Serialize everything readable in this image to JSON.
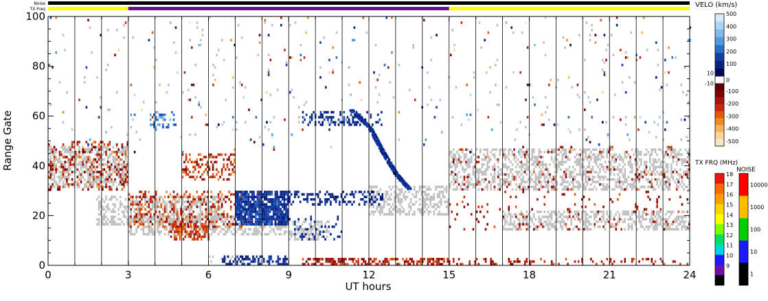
{
  "chart_data": {
    "type": "heatmap",
    "xlabel": "UT hours",
    "ylabel": "Range Gate",
    "x_range": [
      0,
      24
    ],
    "y_range": [
      0,
      100
    ],
    "x_ticks": [
      0,
      3,
      6,
      9,
      12,
      15,
      18,
      21,
      24
    ],
    "y_ticks": [
      0,
      20,
      40,
      60,
      80,
      100
    ],
    "scan_boundaries_hours": [
      1,
      2,
      3,
      4,
      5,
      6,
      7,
      8,
      9,
      10,
      11,
      12,
      13,
      14,
      15,
      16,
      17,
      18,
      19,
      20,
      21,
      22,
      23
    ],
    "top_bars": [
      {
        "label": "Noise",
        "segments": [
          {
            "start": 0,
            "end": 24,
            "color": "#000000"
          }
        ]
      },
      {
        "label": "TX Freq",
        "segments": [
          {
            "start": 0,
            "end": 3,
            "color": "#ffff00"
          },
          {
            "start": 3,
            "end": 15,
            "color": "#6a0d91"
          },
          {
            "start": 15,
            "end": 24,
            "color": "#ffff00"
          }
        ]
      }
    ],
    "ground_scatter_color": "#c0c0c0",
    "regions": [
      {
        "kind": "gs",
        "x0": 0.0,
        "x1": 3.0,
        "y0": 31,
        "y1": 48,
        "density": 0.55
      },
      {
        "kind": "gs",
        "x0": 1.8,
        "x1": 3.0,
        "y0": 16,
        "y1": 28,
        "density": 0.45
      },
      {
        "kind": "gs",
        "x0": 3.0,
        "x1": 6.5,
        "y0": 17,
        "y1": 28,
        "density": 0.5
      },
      {
        "kind": "gs",
        "x0": 3.0,
        "x1": 9.0,
        "y0": 12,
        "y1": 20,
        "density": 0.5
      },
      {
        "kind": "gs",
        "x0": 9.0,
        "x1": 10.5,
        "y0": 10,
        "y1": 18,
        "density": 0.55
      },
      {
        "kind": "gs",
        "x0": 12.0,
        "x1": 15.0,
        "y0": 20,
        "y1": 32,
        "density": 0.5
      },
      {
        "kind": "gs",
        "x0": 15.0,
        "x1": 24.0,
        "y0": 30,
        "y1": 47,
        "density": 0.45
      },
      {
        "kind": "gs",
        "x0": 17.0,
        "x1": 24.0,
        "y0": 14,
        "y1": 22,
        "density": 0.45
      },
      {
        "kind": "gs",
        "x0": 6.0,
        "x1": 8.0,
        "y0": 1,
        "y1": 4,
        "density": 0.25
      },
      {
        "kind": "gs",
        "x0": 0.0,
        "x1": 24.0,
        "y0": 50,
        "y1": 98,
        "density": 0.012
      },
      {
        "kind": "vel",
        "x0": 0.0,
        "x1": 3.0,
        "y0": 30,
        "y1": 50,
        "density": 0.22,
        "vmin": -300,
        "vmax": -50
      },
      {
        "kind": "vel",
        "x0": 3.0,
        "x1": 8.0,
        "y0": 15,
        "y1": 30,
        "density": 0.28,
        "vmin": -300,
        "vmax": -80
      },
      {
        "kind": "vel",
        "x0": 4.5,
        "x1": 6.0,
        "y0": 10,
        "y1": 17,
        "density": 0.55,
        "vmin": -300,
        "vmax": -120
      },
      {
        "kind": "vel",
        "x0": 5.0,
        "x1": 7.0,
        "y0": 34,
        "y1": 45,
        "density": 0.3,
        "vmin": -300,
        "vmax": -80
      },
      {
        "kind": "vel",
        "x0": 7.0,
        "x1": 9.0,
        "y0": 16,
        "y1": 30,
        "density": 0.85,
        "vmin": 80,
        "vmax": 200
      },
      {
        "kind": "vel",
        "x0": 9.0,
        "x1": 12.5,
        "y0": 24,
        "y1": 30,
        "density": 0.35,
        "vmin": 60,
        "vmax": 140
      },
      {
        "kind": "vel",
        "x0": 9.5,
        "x1": 12.5,
        "y0": 56,
        "y1": 62,
        "density": 0.35,
        "vmin": 60,
        "vmax": 150
      },
      {
        "kind": "vel",
        "x0": 9.0,
        "x1": 11.0,
        "y0": 10,
        "y1": 20,
        "density": 0.2,
        "vmin": 60,
        "vmax": 150
      },
      {
        "kind": "vel",
        "x0": 6.5,
        "x1": 9.0,
        "y0": 0,
        "y1": 4,
        "density": 0.5,
        "vmin": 60,
        "vmax": 180
      },
      {
        "kind": "vel",
        "x0": 9.5,
        "x1": 15.0,
        "y0": 0,
        "y1": 3,
        "density": 0.55,
        "vmin": -250,
        "vmax": -80
      },
      {
        "kind": "vel",
        "x0": 15.0,
        "x1": 24.0,
        "y0": 0,
        "y1": 3,
        "density": 0.18,
        "vmin": -250,
        "vmax": -60
      },
      {
        "kind": "vel",
        "x0": 15.0,
        "x1": 24.0,
        "y0": 14,
        "y1": 48,
        "density": 0.05,
        "vmin": -250,
        "vmax": -60
      },
      {
        "kind": "vel",
        "x0": 3.8,
        "x1": 4.8,
        "y0": 55,
        "y1": 62,
        "density": 0.3,
        "vmin": 150,
        "vmax": 350
      },
      {
        "kind": "vel",
        "x0": 0.0,
        "x1": 24.0,
        "y0": 45,
        "y1": 100,
        "density": 0.012,
        "vmin": -450,
        "vmax": 450
      }
    ],
    "diagonal_band": {
      "points": [
        [
          11.3,
          62
        ],
        [
          12.0,
          55
        ],
        [
          12.5,
          45
        ],
        [
          13.0,
          36
        ],
        [
          13.5,
          30
        ]
      ],
      "kind": "vel",
      "vmin": 60,
      "vmax": 160
    },
    "velocity_colorbar": {
      "title": "VELO (km/s)",
      "tick_labels": [
        "500",
        "400",
        "300",
        "200",
        "100",
        "10",
        "0",
        "-10",
        "-100",
        "-200",
        "-300",
        "-400",
        "-500"
      ],
      "colors_top_to_bottom": [
        "#d7ecfa",
        "#aed6f4",
        "#7fbbea",
        "#4f9bdc",
        "#2a6fc8",
        "#143fa6",
        "#082283",
        "#000a55",
        "#ffffff",
        "#5b0000",
        "#800000",
        "#a31515",
        "#c22a0a",
        "#de5a10",
        "#f08c20",
        "#f7b45a",
        "#fbd49a",
        "#fde6c4"
      ]
    },
    "txfrq_colorbar": {
      "title": "TX FRQ (MHz)",
      "tick_labels": [
        "18",
        "17",
        "16",
        "15",
        "14",
        "13",
        "12",
        "11",
        "10",
        "9"
      ],
      "colors_top_to_bottom": [
        "#e8180c",
        "#ff6a00",
        "#ff9e00",
        "#ffd300",
        "#ffff00",
        "#7cff00",
        "#00e060",
        "#00d4e0",
        "#1a1aff",
        "#7010a8",
        "#000000"
      ]
    },
    "noise_colorbar": {
      "title": "NOISE",
      "tick_labels": [
        "10000",
        "1000",
        "100",
        "10",
        "1"
      ],
      "colors_top_to_bottom": [
        "#ff0000",
        "#ffbf00",
        "#00d000",
        "#1a1aff",
        "#000000"
      ]
    }
  }
}
